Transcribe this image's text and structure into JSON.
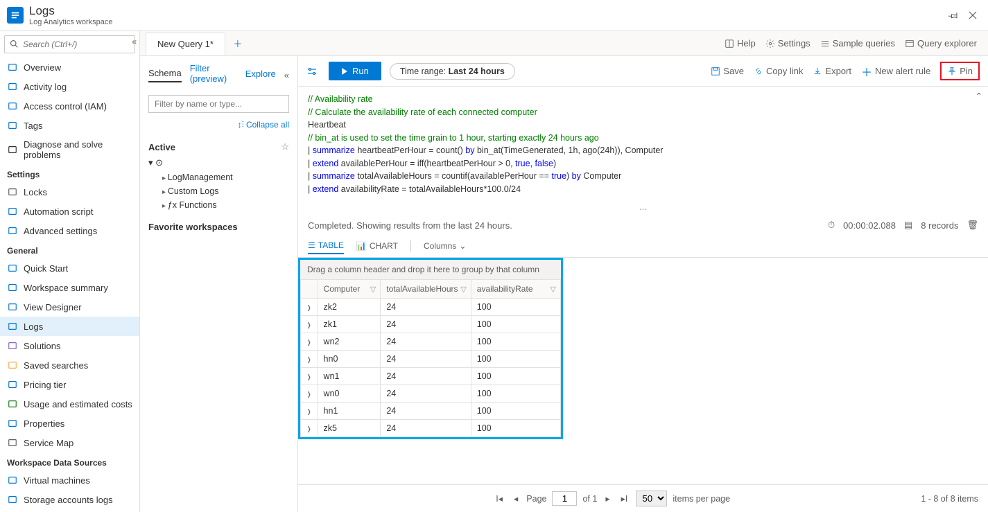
{
  "header": {
    "title": "Logs",
    "subtitle": "Log Analytics workspace"
  },
  "sidebar": {
    "search_placeholder": "Search (Ctrl+/)",
    "sections": [
      {
        "title": "",
        "items": [
          {
            "label": "Overview",
            "icon": "overview-icon",
            "color": "#0078d4"
          },
          {
            "label": "Activity log",
            "icon": "activity-icon",
            "color": "#0078d4"
          },
          {
            "label": "Access control (IAM)",
            "icon": "iam-icon",
            "color": "#0078d4"
          },
          {
            "label": "Tags",
            "icon": "tag-icon",
            "color": "#0078d4"
          },
          {
            "label": "Diagnose and solve problems",
            "icon": "diagnose-icon",
            "color": "#323130"
          }
        ]
      },
      {
        "title": "Settings",
        "items": [
          {
            "label": "Locks",
            "icon": "lock-icon",
            "color": "#605e5c"
          },
          {
            "label": "Automation script",
            "icon": "script-icon",
            "color": "#0078d4"
          },
          {
            "label": "Advanced settings",
            "icon": "gear-icon",
            "color": "#0078d4"
          }
        ]
      },
      {
        "title": "General",
        "items": [
          {
            "label": "Quick Start",
            "icon": "quickstart-icon",
            "color": "#0078d4"
          },
          {
            "label": "Workspace summary",
            "icon": "summary-icon",
            "color": "#0078d4"
          },
          {
            "label": "View Designer",
            "icon": "designer-icon",
            "color": "#0078d4"
          },
          {
            "label": "Logs",
            "icon": "logs-icon",
            "color": "#0078d4",
            "active": true
          },
          {
            "label": "Solutions",
            "icon": "solutions-icon",
            "color": "#8661c5"
          },
          {
            "label": "Saved searches",
            "icon": "star-icon",
            "color": "#ffaa44"
          },
          {
            "label": "Pricing tier",
            "icon": "pricing-icon",
            "color": "#0078d4"
          },
          {
            "label": "Usage and estimated costs",
            "icon": "usage-icon",
            "color": "#107c10"
          },
          {
            "label": "Properties",
            "icon": "props-icon",
            "color": "#0078d4"
          },
          {
            "label": "Service Map",
            "icon": "servicemap-icon",
            "color": "#605e5c"
          }
        ]
      },
      {
        "title": "Workspace Data Sources",
        "items": [
          {
            "label": "Virtual machines",
            "icon": "vm-icon",
            "color": "#0078d4"
          },
          {
            "label": "Storage accounts logs",
            "icon": "storage-icon",
            "color": "#0078d4"
          }
        ]
      }
    ]
  },
  "tabs": {
    "active": "New Query 1*"
  },
  "toolbar": {
    "help": "Help",
    "settings": "Settings",
    "sample": "Sample queries",
    "explorer": "Query explorer"
  },
  "schema": {
    "tabs": [
      "Schema",
      "Filter (preview)",
      "Explore"
    ],
    "filter_placeholder": "Filter by name or type...",
    "collapse_all": "Collapse all",
    "active_label": "Active",
    "nodes": [
      "LogManagement",
      "Custom Logs",
      "Functions"
    ],
    "favorites": "Favorite workspaces"
  },
  "actions": {
    "run": "Run",
    "time_range_label": "Time range:",
    "time_range_value": "Last 24 hours",
    "save": "Save",
    "copy": "Copy link",
    "export": "Export",
    "alert": "New alert rule",
    "pin": "Pin"
  },
  "query": {
    "lines": [
      {
        "t": "// Availability rate",
        "cls": "code-comment"
      },
      {
        "t": "// Calculate the availability rate of each connected computer",
        "cls": "code-comment"
      },
      {
        "t": "Heartbeat",
        "cls": ""
      },
      {
        "t": "// bin_at is used to set the time grain to 1 hour, starting exactly 24 hours ago",
        "cls": "code-comment"
      }
    ],
    "l5_pipe": "| ",
    "l5_kw": "summarize",
    "l5_rest": " heartbeatPerHour = count() ",
    "l5_by": "by",
    "l5_rest2": " bin_at(TimeGenerated, 1h, ago(24h)), Computer",
    "l6_pipe": "| ",
    "l6_kw": "extend",
    "l6_rest": " availablePerHour = iff(heartbeatPerHour > 0, ",
    "l6_true": "true",
    "l6_c": ", ",
    "l6_false": "false",
    "l6_end": ")",
    "l7_pipe": "| ",
    "l7_kw": "summarize",
    "l7_rest": " totalAvailableHours = countif(availablePerHour == ",
    "l7_true": "true",
    "l7_end": ") ",
    "l7_by": "by",
    "l7_comp": " Computer",
    "l8_pipe": "| ",
    "l8_kw": "extend",
    "l8_rest": " availabilityRate = totalAvailableHours*100.0/24"
  },
  "results": {
    "status": "Completed. Showing results from the last 24 hours.",
    "duration": "00:00:02.088",
    "records": "8 records",
    "view_table": "TABLE",
    "view_chart": "CHART",
    "columns_btn": "Columns",
    "group_hint": "Drag a column header and drop it here to group by that column",
    "columns": [
      "Computer",
      "totalAvailableHours",
      "availabilityRate"
    ],
    "col_widths": [
      "98px",
      "134px",
      "140px"
    ],
    "rows": [
      [
        "zk2",
        "24",
        "100"
      ],
      [
        "zk1",
        "24",
        "100"
      ],
      [
        "wn2",
        "24",
        "100"
      ],
      [
        "hn0",
        "24",
        "100"
      ],
      [
        "wn1",
        "24",
        "100"
      ],
      [
        "wn0",
        "24",
        "100"
      ],
      [
        "hn1",
        "24",
        "100"
      ],
      [
        "zk5",
        "24",
        "100"
      ]
    ]
  },
  "pager": {
    "page_label": "Page",
    "page": "1",
    "of": "of 1",
    "per_page": "50",
    "per_label": "items per page",
    "summary": "1 - 8 of 8 items"
  },
  "colors": {
    "primary": "#0078d4",
    "highlight_border": "#00a4ef",
    "pin_border": "#e81123",
    "comment": "#008000"
  }
}
